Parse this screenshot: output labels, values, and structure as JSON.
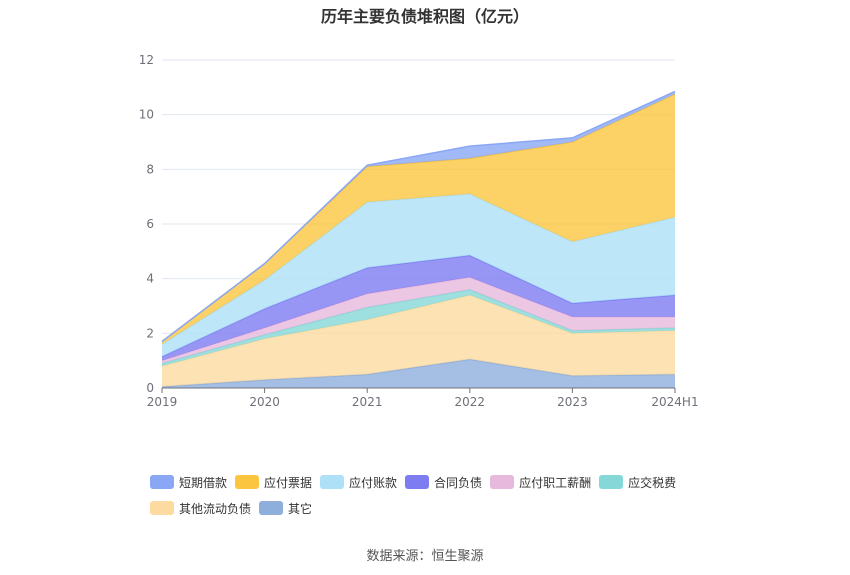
{
  "chart_data": {
    "type": "area",
    "stacked": true,
    "title": "历年主要负债堆积图（亿元）",
    "categories": [
      "2019",
      "2020",
      "2021",
      "2022",
      "2023",
      "2024H1"
    ],
    "ylim": [
      0,
      12
    ],
    "yticks": [
      0,
      2,
      4,
      6,
      8,
      10,
      12
    ],
    "grid": true,
    "legend_position": "bottom",
    "series": [
      {
        "name": "其它",
        "color": "#8eaedc",
        "values": [
          0.05,
          0.3,
          0.5,
          1.05,
          0.45,
          0.5
        ]
      },
      {
        "name": "其他流动负债",
        "color": "#fddba0",
        "values": [
          0.75,
          1.5,
          2.0,
          2.35,
          1.55,
          1.6
        ]
      },
      {
        "name": "应交税费",
        "color": "#86d7d7",
        "values": [
          0.1,
          0.15,
          0.45,
          0.2,
          0.1,
          0.1
        ]
      },
      {
        "name": "应付职工薪酬",
        "color": "#e7b9dd",
        "values": [
          0.1,
          0.25,
          0.5,
          0.45,
          0.5,
          0.4
        ]
      },
      {
        "name": "合同负债",
        "color": "#7e7cf1",
        "values": [
          0.15,
          0.7,
          0.95,
          0.8,
          0.5,
          0.8
        ]
      },
      {
        "name": "应付账款",
        "color": "#aee0f8",
        "values": [
          0.45,
          1.05,
          2.4,
          2.25,
          2.25,
          2.85
        ]
      },
      {
        "name": "应付票据",
        "color": "#fbc540",
        "values": [
          0.1,
          0.6,
          1.3,
          1.3,
          3.65,
          4.5
        ]
      },
      {
        "name": "短期借款",
        "color": "#89a7f5",
        "values": [
          0,
          0,
          0.05,
          0.45,
          0.15,
          0.1
        ]
      }
    ],
    "legend_order": [
      "短期借款",
      "应付票据",
      "应付账款",
      "合同负债",
      "应付职工薪酬",
      "应交税费",
      "其他流动负债",
      "其它"
    ]
  },
  "source_note": "数据来源：恒生聚源"
}
